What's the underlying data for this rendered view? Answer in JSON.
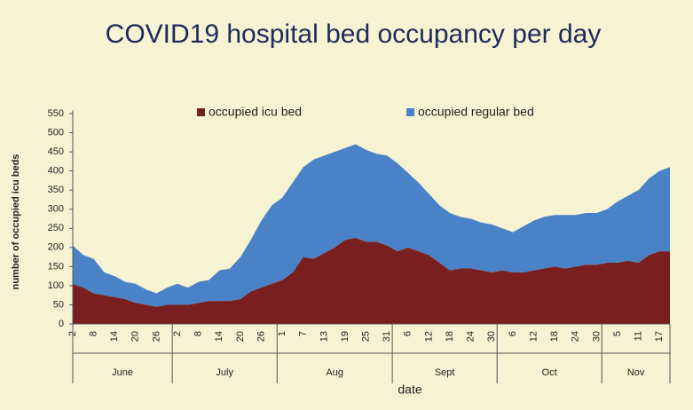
{
  "chart_data": {
    "type": "stacked_area",
    "title": "COVID19 hospital bed occupancy per day",
    "y_label": "number of occupied icu beds",
    "x_label": "date",
    "categories": [
      "2",
      null,
      "8",
      null,
      "14",
      null,
      "20",
      null,
      "26",
      null,
      "2",
      null,
      "8",
      null,
      "14",
      null,
      "20",
      null,
      "26",
      null,
      "1",
      null,
      "7",
      null,
      "13",
      null,
      "19",
      null,
      "25",
      null,
      "31",
      null,
      "6",
      null,
      "12",
      null,
      "18",
      null,
      "24",
      null,
      "30",
      null,
      "6",
      null,
      "12",
      null,
      "18",
      null,
      "24",
      null,
      "30",
      null,
      "5",
      null,
      "11",
      null,
      "17",
      null
    ],
    "x_groups": [
      {
        "label": "June",
        "span": 10
      },
      {
        "label": "July",
        "span": 10
      },
      {
        "label": "Aug",
        "span": 11
      },
      {
        "label": "Sept",
        "span": 10
      },
      {
        "label": "Oct",
        "span": 10
      },
      {
        "label": "Nov",
        "span": 7
      }
    ],
    "series": [
      {
        "name": "occupied icu bed",
        "color": "#7a1f1f",
        "values": [
          105,
          95,
          80,
          75,
          70,
          65,
          55,
          50,
          45,
          50,
          50,
          50,
          55,
          60,
          60,
          60,
          65,
          85,
          95,
          105,
          115,
          135,
          175,
          170,
          185,
          200,
          220,
          225,
          215,
          215,
          205,
          190,
          200,
          190,
          180,
          160,
          140,
          145,
          145,
          140,
          135,
          140,
          135,
          135,
          140,
          145,
          150,
          145,
          150,
          155,
          155,
          160,
          160,
          165,
          160,
          180,
          190,
          190
        ]
      },
      {
        "name": "occupied regular bed",
        "color": "#4a82c8",
        "values": [
          100,
          85,
          90,
          60,
          55,
          45,
          50,
          40,
          35,
          45,
          55,
          45,
          55,
          55,
          80,
          85,
          110,
          135,
          175,
          205,
          215,
          235,
          235,
          260,
          255,
          250,
          240,
          245,
          240,
          230,
          235,
          230,
          195,
          180,
          160,
          150,
          150,
          135,
          130,
          125,
          125,
          110,
          105,
          120,
          130,
          135,
          135,
          140,
          135,
          135,
          135,
          140,
          160,
          170,
          190,
          200,
          210,
          220
        ]
      }
    ],
    "ylim": [
      0,
      550
    ],
    "yticks": [
      0,
      50,
      100,
      150,
      200,
      250,
      300,
      350,
      400,
      450,
      500,
      550
    ],
    "legend": "top",
    "grid": false
  }
}
